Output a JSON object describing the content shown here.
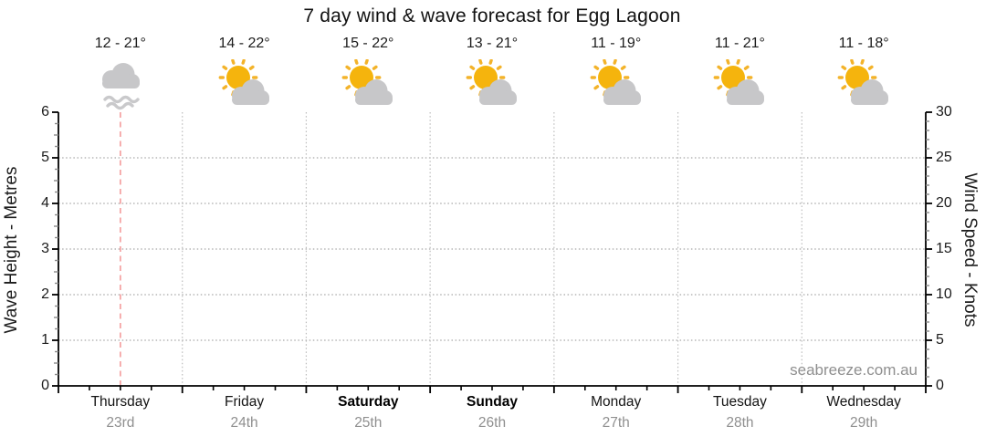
{
  "title": "7 day wind & wave forecast for Egg Lagoon",
  "watermark": "seabreeze.com.au",
  "days": [
    {
      "name": "Thursday",
      "date": "23rd",
      "temp": "12 - 21°",
      "icon": "fog",
      "emphasis": false
    },
    {
      "name": "Friday",
      "date": "24th",
      "temp": "14 - 22°",
      "icon": "partly-cloudy",
      "emphasis": false
    },
    {
      "name": "Saturday",
      "date": "25th",
      "temp": "15 - 22°",
      "icon": "partly-cloudy",
      "emphasis": true
    },
    {
      "name": "Sunday",
      "date": "26th",
      "temp": "13 - 21°",
      "icon": "partly-cloudy",
      "emphasis": true
    },
    {
      "name": "Monday",
      "date": "27th",
      "temp": "11 - 19°",
      "icon": "partly-cloudy",
      "emphasis": false
    },
    {
      "name": "Tuesday",
      "date": "28th",
      "temp": "11 - 21°",
      "icon": "partly-cloudy",
      "emphasis": false
    },
    {
      "name": "Wednesday",
      "date": "29th",
      "temp": "11 - 18°",
      "icon": "partly-cloudy",
      "emphasis": false
    }
  ],
  "chart_data": {
    "type": "line",
    "title": "7 day wind & wave forecast for Egg Lagoon",
    "x": {
      "categories": [
        "Thursday 23rd",
        "Friday 24th",
        "Saturday 25th",
        "Sunday 26th",
        "Monday 27th",
        "Tuesday 28th",
        "Wednesday 29th"
      ],
      "minor_ticks_per_day": 3
    },
    "left_axis": {
      "label": "Wave Height - Metres",
      "min": 0,
      "max": 6,
      "ticks": [
        0,
        1,
        2,
        3,
        4,
        5,
        6
      ],
      "minor_step": 0.25
    },
    "right_axis": {
      "label": "Wind Speed - Knots",
      "min": 0,
      "max": 30,
      "ticks": [
        0,
        5,
        10,
        15,
        20,
        25,
        30
      ],
      "minor_step": 1
    },
    "series": [],
    "now_marker": {
      "day": "Thursday",
      "time": "midday",
      "style": "dashed"
    },
    "grid": "dotted horizontal at each metre (1-5) and vertical at day boundaries",
    "legend": "none"
  },
  "colors": {
    "sun": "#F5B40D",
    "sun_rays": "#F3B32A",
    "cloud": "#C7C7C9",
    "fog_lines": "#C9C9CB",
    "now_line": "#F5A2A2",
    "grid_h": "#a8a8a8",
    "grid_v": "#bcbcbc",
    "axis": "#000000",
    "minor_tick": "#8a8a8a",
    "date_text": "#8f8f8f",
    "watermark_text": "#8f8f8f"
  }
}
